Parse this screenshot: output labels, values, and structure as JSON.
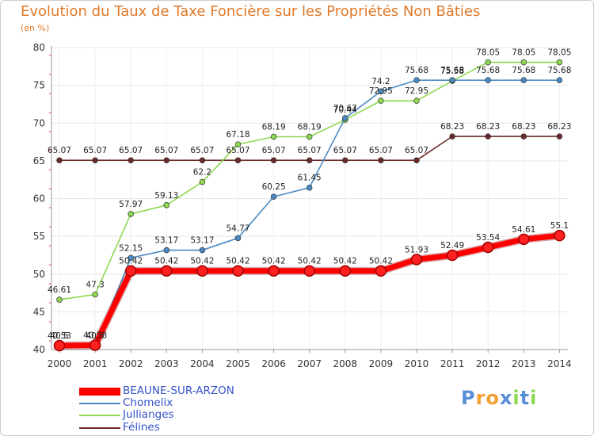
{
  "chart_data": {
    "type": "line",
    "title": "Evolution du Taux de Taxe Foncière sur les Propriétés Non Bâties",
    "ylabel": "(en %)",
    "xlabel": "",
    "ylim": [
      40,
      80
    ],
    "yticks": [
      40,
      45,
      50,
      55,
      60,
      65,
      70,
      75,
      80
    ],
    "grid": true,
    "categories": [
      "2000",
      "2001",
      "2002",
      "2003",
      "2004",
      "2005",
      "2006",
      "2007",
      "2008",
      "2009",
      "2010",
      "2011",
      "2012",
      "2013",
      "2014"
    ],
    "series": [
      {
        "name": "BEAUNE-SUR-ARZON",
        "color": "#ff0000",
        "values": [
          40.53,
          40.58,
          50.42,
          50.42,
          50.42,
          50.42,
          50.42,
          50.42,
          50.42,
          50.42,
          51.93,
          52.49,
          53.54,
          54.61,
          55.1
        ],
        "labels": [
          "40.53",
          "40.58",
          "50.42",
          "50.42",
          "50.42",
          "50.42",
          "50.42",
          "50.42",
          "50.42",
          "50.42",
          "51.93",
          "52.49",
          "53.54",
          "54.61",
          "55.1"
        ]
      },
      {
        "name": "Chomelix",
        "color": "#4a8ac4",
        "values": [
          40.5,
          40.5,
          52.15,
          53.17,
          53.17,
          54.77,
          60.25,
          61.45,
          70.67,
          74.2,
          75.68,
          75.68,
          75.68,
          75.68,
          75.68
        ],
        "labels": [
          "40.5",
          "40.5",
          "52.15",
          "53.17",
          "53.17",
          "54.77",
          "60.25",
          "61.45",
          "70.67",
          "74.2",
          "75.68",
          "75.68",
          "75.68",
          "75.68",
          "75.68"
        ]
      },
      {
        "name": "Jullianges",
        "color": "#8ed850",
        "values": [
          46.61,
          47.3,
          57.97,
          59.13,
          62.2,
          67.18,
          68.19,
          68.19,
          70.44,
          72.95,
          72.95,
          75.58,
          78.05,
          78.05,
          78.05
        ],
        "labels": [
          "46.61",
          "47.3",
          "57.97",
          "59.13",
          "62.2",
          "67.18",
          "68.19",
          "68.19",
          "70.44",
          "72.95",
          "72.95",
          "75.58",
          "78.05",
          "78.05",
          "78.05"
        ]
      },
      {
        "name": "Félines",
        "color": "#6b2a2a",
        "values": [
          65.07,
          65.07,
          65.07,
          65.07,
          65.07,
          65.07,
          65.07,
          65.07,
          65.07,
          65.07,
          65.07,
          68.23,
          68.23,
          68.23,
          68.23
        ],
        "labels": [
          "65.07",
          "65.07",
          "65.07",
          "65.07",
          "65.07",
          "65.07",
          "65.07",
          "65.07",
          "65.07",
          "65.07",
          "65.07",
          "68.23",
          "68.23",
          "68.23",
          "68.23"
        ]
      }
    ]
  },
  "logo": {
    "text": "Proxiti",
    "letters": [
      "P",
      "r",
      "o",
      "x",
      "i",
      "t",
      "i"
    ],
    "colors": [
      "#5a8fd8",
      "#f0a030",
      "#f0a030",
      "#5a8fd8",
      "#8ed850",
      "#5a8fd8",
      "#8ed850"
    ]
  }
}
